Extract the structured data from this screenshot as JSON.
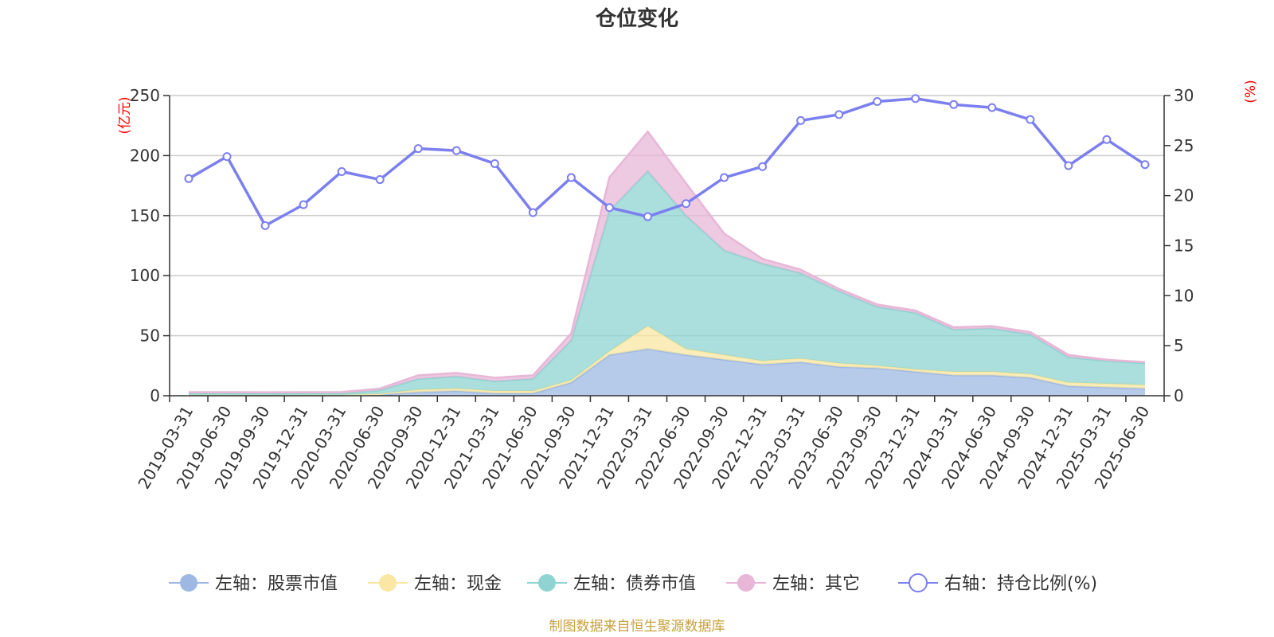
{
  "chart_data": {
    "type": "area",
    "title": "仓位变化",
    "source_note": "制图数据来自恒生聚源数据库",
    "left_axis": {
      "unit": "(亿元)",
      "ylim": [
        0,
        250
      ],
      "ticks": [
        "0",
        "50",
        "100",
        "150",
        "200",
        "250"
      ]
    },
    "right_axis": {
      "unit": "(%)",
      "ylim": [
        0,
        30
      ],
      "ticks": [
        "0",
        "5",
        "10",
        "15",
        "20",
        "25",
        "30"
      ]
    },
    "grid": true,
    "legend_position": "bottom",
    "categories": [
      "2019-03-31",
      "2019-06-30",
      "2019-09-30",
      "2019-12-31",
      "2020-03-31",
      "2020-06-30",
      "2020-09-30",
      "2020-12-31",
      "2021-03-31",
      "2021-06-30",
      "2021-09-30",
      "2021-12-31",
      "2022-03-31",
      "2022-06-30",
      "2022-09-30",
      "2022-12-31",
      "2023-03-31",
      "2023-06-30",
      "2023-09-30",
      "2023-12-31",
      "2024-03-31",
      "2024-06-30",
      "2024-09-30",
      "2024-12-31",
      "2025-03-31",
      "2025-06-30"
    ],
    "series": [
      {
        "name": "左轴：股票市值",
        "axis": "left",
        "kind": "stacked-area",
        "color": "#9db8e2",
        "values": [
          0.3,
          0.3,
          0.2,
          0.3,
          0.4,
          1,
          3,
          4,
          2,
          2,
          11,
          34,
          39,
          34,
          30,
          26,
          28,
          24,
          23,
          20,
          17,
          17,
          15,
          8,
          7,
          6
        ]
      },
      {
        "name": "左轴：现金",
        "axis": "left",
        "kind": "stacked-area",
        "color": "#f9e7a3",
        "values": [
          0.2,
          0.2,
          0.2,
          0.2,
          0.2,
          0.5,
          2,
          2,
          2,
          2,
          2,
          3,
          19,
          5,
          4,
          3,
          3,
          3,
          2,
          2,
          3,
          3,
          3,
          3,
          3,
          3
        ]
      },
      {
        "name": "左轴：债券市值",
        "axis": "left",
        "kind": "stacked-area",
        "color": "#8fd4d2",
        "values": [
          1.5,
          1.5,
          1.5,
          1.5,
          1.5,
          3,
          9,
          10,
          8,
          10,
          33,
          117,
          129,
          111,
          87,
          81,
          71,
          60,
          49,
          47,
          35,
          36,
          33,
          21,
          19,
          18
        ]
      },
      {
        "name": "左轴：其它",
        "axis": "left",
        "kind": "stacked-area",
        "color": "#e8b7d8",
        "values": [
          1,
          1,
          1,
          1,
          1,
          1.5,
          3,
          3,
          3,
          3,
          6,
          28,
          33,
          27,
          14,
          4,
          3,
          2,
          2,
          2,
          2,
          2,
          2,
          2,
          1,
          1
        ]
      },
      {
        "name": "右轴：持仓比例(%)",
        "axis": "right",
        "kind": "line",
        "color": "#7b7ff0",
        "values": [
          21.7,
          23.9,
          17.0,
          19.1,
          22.4,
          21.6,
          24.7,
          24.5,
          23.2,
          18.3,
          21.8,
          18.8,
          17.9,
          19.2,
          21.8,
          22.9,
          27.5,
          28.1,
          29.4,
          29.7,
          29.1,
          28.8,
          27.6,
          23.0,
          25.6,
          23.1
        ]
      }
    ]
  }
}
